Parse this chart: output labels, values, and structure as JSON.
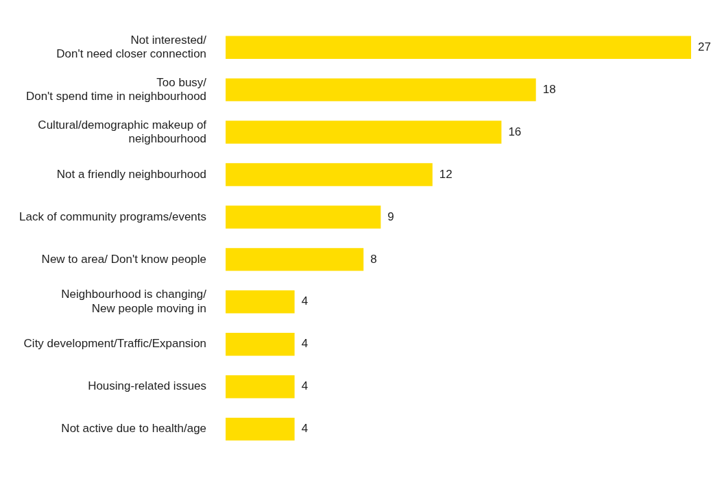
{
  "chart_data": {
    "type": "bar",
    "orientation": "horizontal",
    "categories": [
      "Not interested/\nDon't need closer connection",
      "Too busy/\nDon't spend time in neighbourhood",
      "Cultural/demographic makeup of\nneighbourhood",
      "Not a friendly neighbourhood",
      "Lack of community programs/events",
      "New to area/ Don't know people",
      "Neighbourhood is changing/\nNew people moving in",
      "City development/Traffic/Expansion",
      "Housing-related issues",
      "Not active due to health/age"
    ],
    "values": [
      27,
      18,
      16,
      12,
      9,
      8,
      4,
      4,
      4,
      4
    ],
    "color": "#ffdd00",
    "data_labels": true,
    "legend": false
  }
}
